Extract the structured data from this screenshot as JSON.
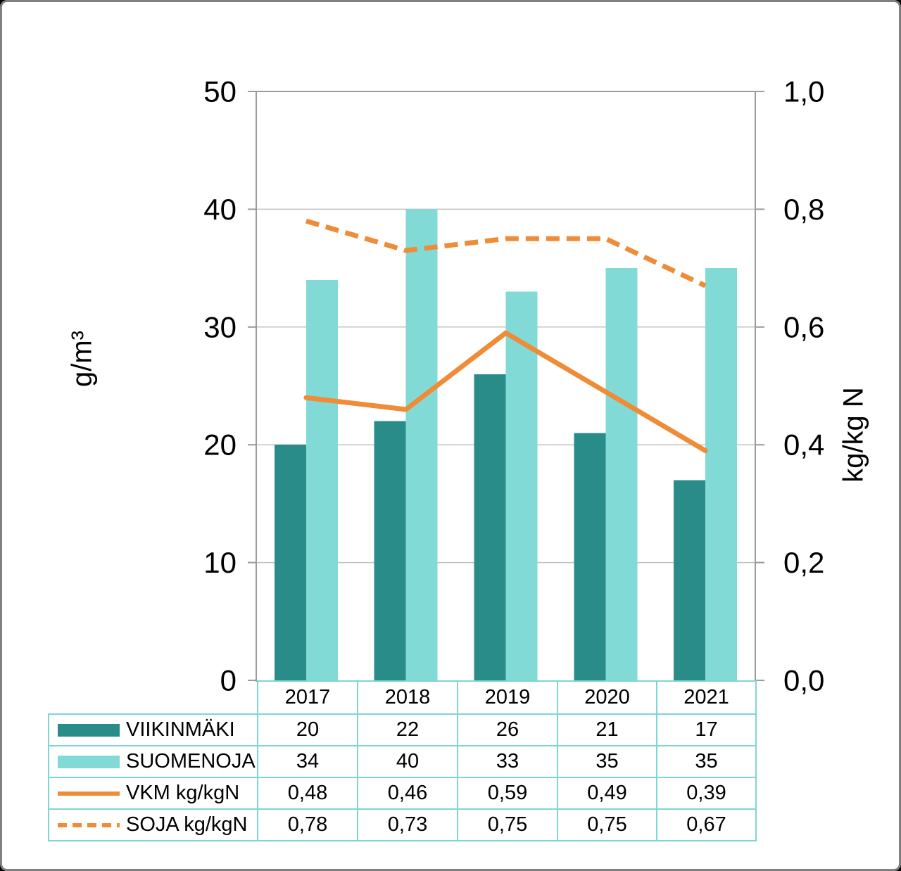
{
  "palette": {
    "bar_dark": "#2A8C88",
    "bar_light": "#82DAD6",
    "line_orange": "#EF8C38",
    "table_border": "#7CD6D3",
    "grid": "#C2C2C2",
    "axis": "#9B9B9B",
    "text": "#000000",
    "background": "#FFFFFF",
    "frame_border": "#808080",
    "outer": "#000000"
  },
  "chart_data": {
    "type": "combo-bar-line",
    "title": "",
    "categories": [
      "2017",
      "2018",
      "2019",
      "2020",
      "2021"
    ],
    "bar_series": [
      {
        "name": "VIIKINMÄKI",
        "axis": "left",
        "color_key": "bar_dark",
        "values": [
          20,
          22,
          26,
          21,
          17
        ],
        "display": [
          "20",
          "22",
          "26",
          "21",
          "17"
        ]
      },
      {
        "name": "SUOMENOJA",
        "axis": "left",
        "color_key": "bar_light",
        "values": [
          34,
          40,
          33,
          35,
          35
        ],
        "display": [
          "34",
          "40",
          "33",
          "35",
          "35"
        ]
      }
    ],
    "line_series": [
      {
        "name": "VKM kg/kgN",
        "axis": "right",
        "dash": "solid",
        "color_key": "line_orange",
        "values": [
          0.48,
          0.46,
          0.59,
          0.49,
          0.39
        ],
        "display": [
          "0,48",
          "0,46",
          "0,59",
          "0,49",
          "0,39"
        ]
      },
      {
        "name": "SOJA kg/kgN",
        "axis": "right",
        "dash": "dashed",
        "color_key": "line_orange",
        "values": [
          0.78,
          0.73,
          0.75,
          0.75,
          0.67
        ],
        "display": [
          "0,78",
          "0,73",
          "0,75",
          "0,75",
          "0,67"
        ]
      }
    ],
    "left_axis": {
      "title": "g/m³",
      "min": 0,
      "max": 50,
      "step": 10,
      "tick_labels": [
        "0",
        "10",
        "20",
        "30",
        "40",
        "50"
      ]
    },
    "right_axis": {
      "title": "kg/kg N",
      "min": 0,
      "max": 1,
      "step": 0.2,
      "tick_labels": [
        "0,0",
        "0,2",
        "0,4",
        "0,6",
        "0,8",
        "1,0"
      ]
    },
    "grid": true,
    "legend_position": "table-left-column"
  }
}
